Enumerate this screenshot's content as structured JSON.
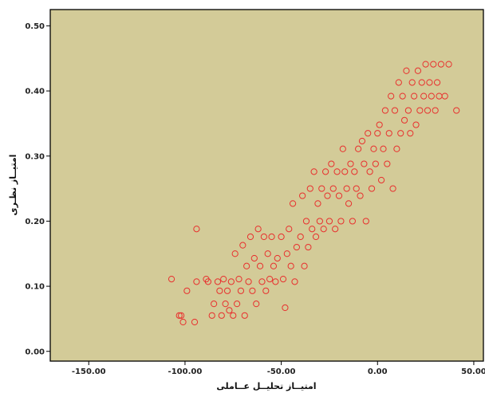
{
  "chart_data": {
    "type": "scatter",
    "title": "",
    "xlabel": "امتيــاز تحليــل عــاملى",
    "ylabel": "امتيــاز نظـرى",
    "xlim": [
      -170,
      55
    ],
    "ylim": [
      -0.015,
      0.525
    ],
    "x_ticks": [
      -150,
      -100,
      -50,
      0,
      50
    ],
    "x_tick_labels": [
      "-150.00",
      "-100.00",
      "-50.00",
      "0.00",
      "50.00"
    ],
    "y_ticks": [
      0,
      0.1,
      0.2,
      0.3,
      0.4,
      0.5
    ],
    "y_tick_labels": [
      "0.00",
      "0.10",
      "0.20",
      "0.30",
      "0.40",
      "0.50"
    ],
    "grid": false,
    "colors": {
      "plot_background": "#d3cb98",
      "marker": "#e8302e"
    },
    "series": [
      {
        "marker": "open-circle",
        "points": [
          [
            -107,
            0.111
          ],
          [
            -103,
            0.055
          ],
          [
            -102,
            0.055
          ],
          [
            -101,
            0.045
          ],
          [
            -99,
            0.093
          ],
          [
            -95,
            0.045
          ],
          [
            -94,
            0.188
          ],
          [
            -94,
            0.107
          ],
          [
            -89,
            0.111
          ],
          [
            -88,
            0.107
          ],
          [
            -86,
            0.055
          ],
          [
            -85,
            0.073
          ],
          [
            -83,
            0.107
          ],
          [
            -82,
            0.093
          ],
          [
            -81,
            0.055
          ],
          [
            -80,
            0.111
          ],
          [
            -79,
            0.073
          ],
          [
            -78,
            0.093
          ],
          [
            -77,
            0.063
          ],
          [
            -76,
            0.107
          ],
          [
            -75,
            0.055
          ],
          [
            -74,
            0.15
          ],
          [
            -73,
            0.073
          ],
          [
            -72,
            0.111
          ],
          [
            -71,
            0.093
          ],
          [
            -70,
            0.163
          ],
          [
            -69,
            0.055
          ],
          [
            -68,
            0.131
          ],
          [
            -67,
            0.107
          ],
          [
            -66,
            0.176
          ],
          [
            -65,
            0.093
          ],
          [
            -64,
            0.143
          ],
          [
            -63,
            0.073
          ],
          [
            -62,
            0.188
          ],
          [
            -61,
            0.131
          ],
          [
            -60,
            0.107
          ],
          [
            -59,
            0.176
          ],
          [
            -58,
            0.093
          ],
          [
            -57,
            0.15
          ],
          [
            -56,
            0.111
          ],
          [
            -55,
            0.176
          ],
          [
            -54,
            0.131
          ],
          [
            -53,
            0.107
          ],
          [
            -52,
            0.143
          ],
          [
            -50,
            0.176
          ],
          [
            -49,
            0.111
          ],
          [
            -48,
            0.067
          ],
          [
            -47,
            0.15
          ],
          [
            -46,
            0.188
          ],
          [
            -45,
            0.131
          ],
          [
            -44,
            0.227
          ],
          [
            -43,
            0.107
          ],
          [
            -42,
            0.16
          ],
          [
            -40,
            0.176
          ],
          [
            -39,
            0.239
          ],
          [
            -38,
            0.131
          ],
          [
            -37,
            0.2
          ],
          [
            -36,
            0.16
          ],
          [
            -35,
            0.25
          ],
          [
            -34,
            0.188
          ],
          [
            -33,
            0.276
          ],
          [
            -32,
            0.176
          ],
          [
            -31,
            0.227
          ],
          [
            -30,
            0.2
          ],
          [
            -29,
            0.25
          ],
          [
            -28,
            0.188
          ],
          [
            -27,
            0.276
          ],
          [
            -26,
            0.239
          ],
          [
            -25,
            0.2
          ],
          [
            -24,
            0.288
          ],
          [
            -23,
            0.25
          ],
          [
            -22,
            0.188
          ],
          [
            -21,
            0.276
          ],
          [
            -20,
            0.239
          ],
          [
            -19,
            0.2
          ],
          [
            -18,
            0.311
          ],
          [
            -17,
            0.276
          ],
          [
            -16,
            0.25
          ],
          [
            -15,
            0.227
          ],
          [
            -14,
            0.288
          ],
          [
            -13,
            0.2
          ],
          [
            -12,
            0.276
          ],
          [
            -11,
            0.25
          ],
          [
            -10,
            0.311
          ],
          [
            -9,
            0.239
          ],
          [
            -8,
            0.323
          ],
          [
            -7,
            0.288
          ],
          [
            -6,
            0.2
          ],
          [
            -5,
            0.335
          ],
          [
            -4,
            0.276
          ],
          [
            -3,
            0.25
          ],
          [
            -2,
            0.311
          ],
          [
            -1,
            0.288
          ],
          [
            0,
            0.335
          ],
          [
            1,
            0.348
          ],
          [
            2,
            0.263
          ],
          [
            3,
            0.311
          ],
          [
            4,
            0.37
          ],
          [
            5,
            0.288
          ],
          [
            6,
            0.335
          ],
          [
            7,
            0.392
          ],
          [
            8,
            0.25
          ],
          [
            9,
            0.37
          ],
          [
            10,
            0.311
          ],
          [
            11,
            0.413
          ],
          [
            12,
            0.335
          ],
          [
            13,
            0.392
          ],
          [
            14,
            0.355
          ],
          [
            15,
            0.431
          ],
          [
            16,
            0.37
          ],
          [
            17,
            0.335
          ],
          [
            18,
            0.413
          ],
          [
            19,
            0.392
          ],
          [
            20,
            0.348
          ],
          [
            21,
            0.431
          ],
          [
            22,
            0.37
          ],
          [
            23,
            0.413
          ],
          [
            24,
            0.392
          ],
          [
            25,
            0.441
          ],
          [
            26,
            0.37
          ],
          [
            27,
            0.413
          ],
          [
            28,
            0.392
          ],
          [
            29,
            0.441
          ],
          [
            30,
            0.37
          ],
          [
            31,
            0.413
          ],
          [
            32,
            0.392
          ],
          [
            33,
            0.441
          ],
          [
            35,
            0.392
          ],
          [
            37,
            0.441
          ],
          [
            41,
            0.37
          ]
        ]
      }
    ]
  }
}
